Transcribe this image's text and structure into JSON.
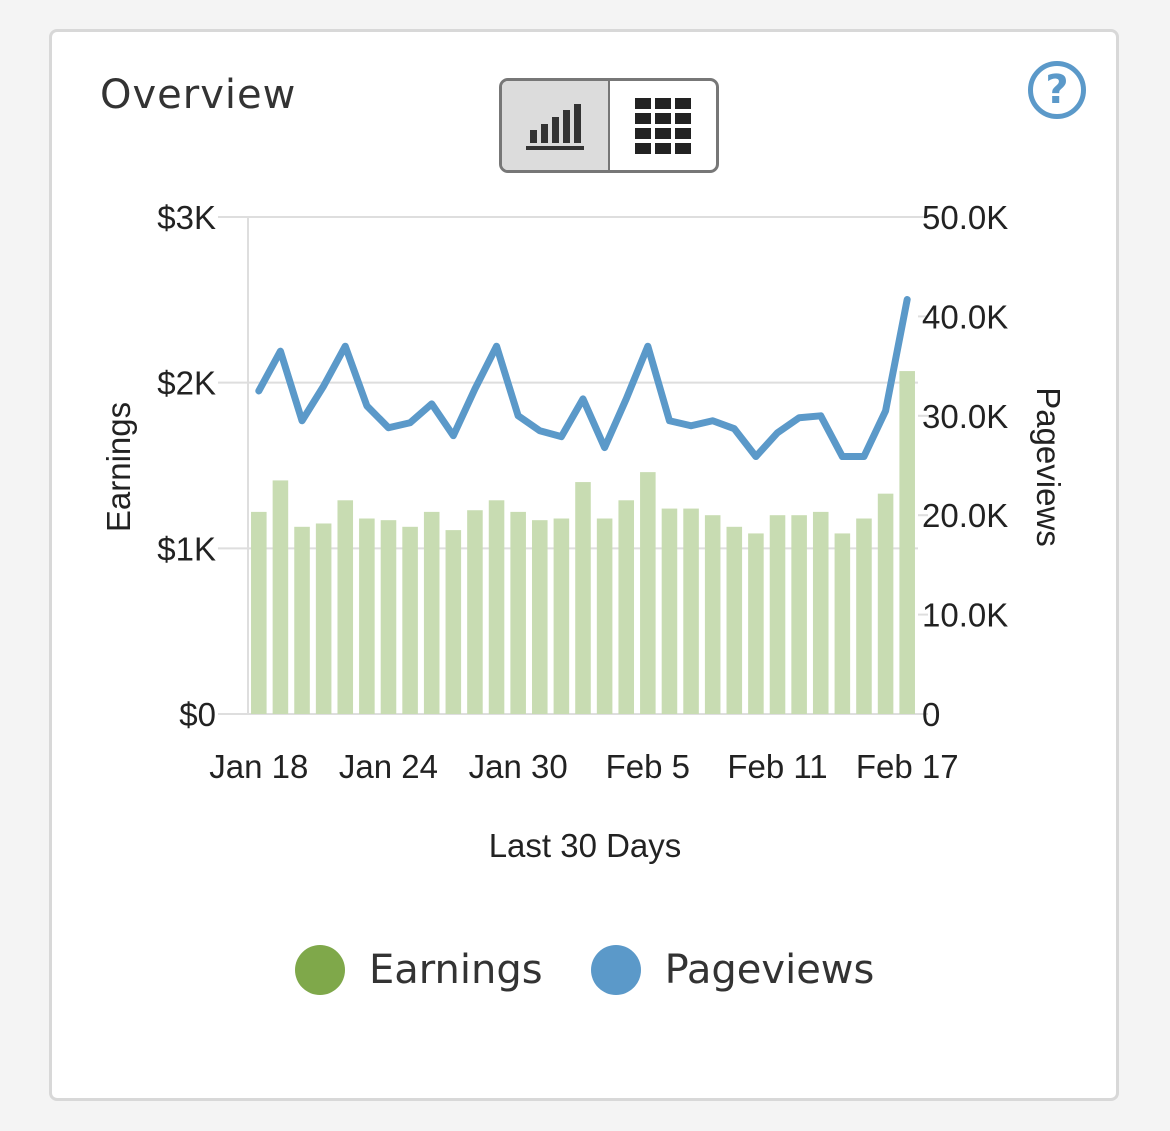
{
  "card": {
    "title": "Overview"
  },
  "view_toggle": {
    "selected": "bar-chart"
  },
  "help": {
    "icon": "question-circle-icon"
  },
  "colors": {
    "earnings": "#7fa84a",
    "earnings_bar": "#c8dcb2",
    "pageviews": "#5b99c9"
  },
  "chart_data": {
    "type": "bar+line",
    "xlabel": "Last 30 Days",
    "ylabel_left": "Earnings",
    "ylabel_right": "Pageviews",
    "x_tick_labels": [
      "Jan 18",
      "Jan 24",
      "Jan 30",
      "Feb 5",
      "Feb 11",
      "Feb 17"
    ],
    "y_left_ticks": [
      "$0",
      "$1K",
      "$2K",
      "$3K"
    ],
    "y_right_ticks": [
      "0",
      "10.0K",
      "20.0K",
      "30.0K",
      "40.0K",
      "50.0K"
    ],
    "ylim_left": [
      0,
      3000
    ],
    "ylim_right": [
      0,
      50000
    ],
    "grid": true,
    "dates": [
      "Jan 18",
      "Jan 19",
      "Jan 20",
      "Jan 21",
      "Jan 22",
      "Jan 23",
      "Jan 24",
      "Jan 25",
      "Jan 26",
      "Jan 27",
      "Jan 28",
      "Jan 29",
      "Jan 30",
      "Jan 31",
      "Feb 1",
      "Feb 2",
      "Feb 3",
      "Feb 4",
      "Feb 5",
      "Feb 6",
      "Feb 7",
      "Feb 8",
      "Feb 9",
      "Feb 10",
      "Feb 11",
      "Feb 12",
      "Feb 13",
      "Feb 14",
      "Feb 15",
      "Feb 16",
      "Feb 17"
    ],
    "series": [
      {
        "name": "Earnings",
        "type": "bar",
        "axis": "left",
        "values": [
          1220,
          1410,
          1130,
          1150,
          1290,
          1180,
          1170,
          1130,
          1220,
          1110,
          1230,
          1290,
          1220,
          1170,
          1180,
          1400,
          1180,
          1290,
          1460,
          1240,
          1240,
          1200,
          1130,
          1090,
          1200,
          1200,
          1220,
          1090,
          1180,
          1330,
          2070
        ]
      },
      {
        "name": "Pageviews",
        "type": "line",
        "axis": "right",
        "values": [
          32500,
          36500,
          29500,
          33000,
          37000,
          31000,
          28800,
          29300,
          31200,
          28000,
          32700,
          37000,
          30000,
          28500,
          27900,
          31700,
          26800,
          31700,
          37000,
          29500,
          29000,
          29500,
          28700,
          25900,
          28300,
          29800,
          30000,
          25900,
          25900,
          30500,
          41700
        ]
      }
    ],
    "legend": [
      "Earnings",
      "Pageviews"
    ],
    "legend_position": "bottom"
  }
}
